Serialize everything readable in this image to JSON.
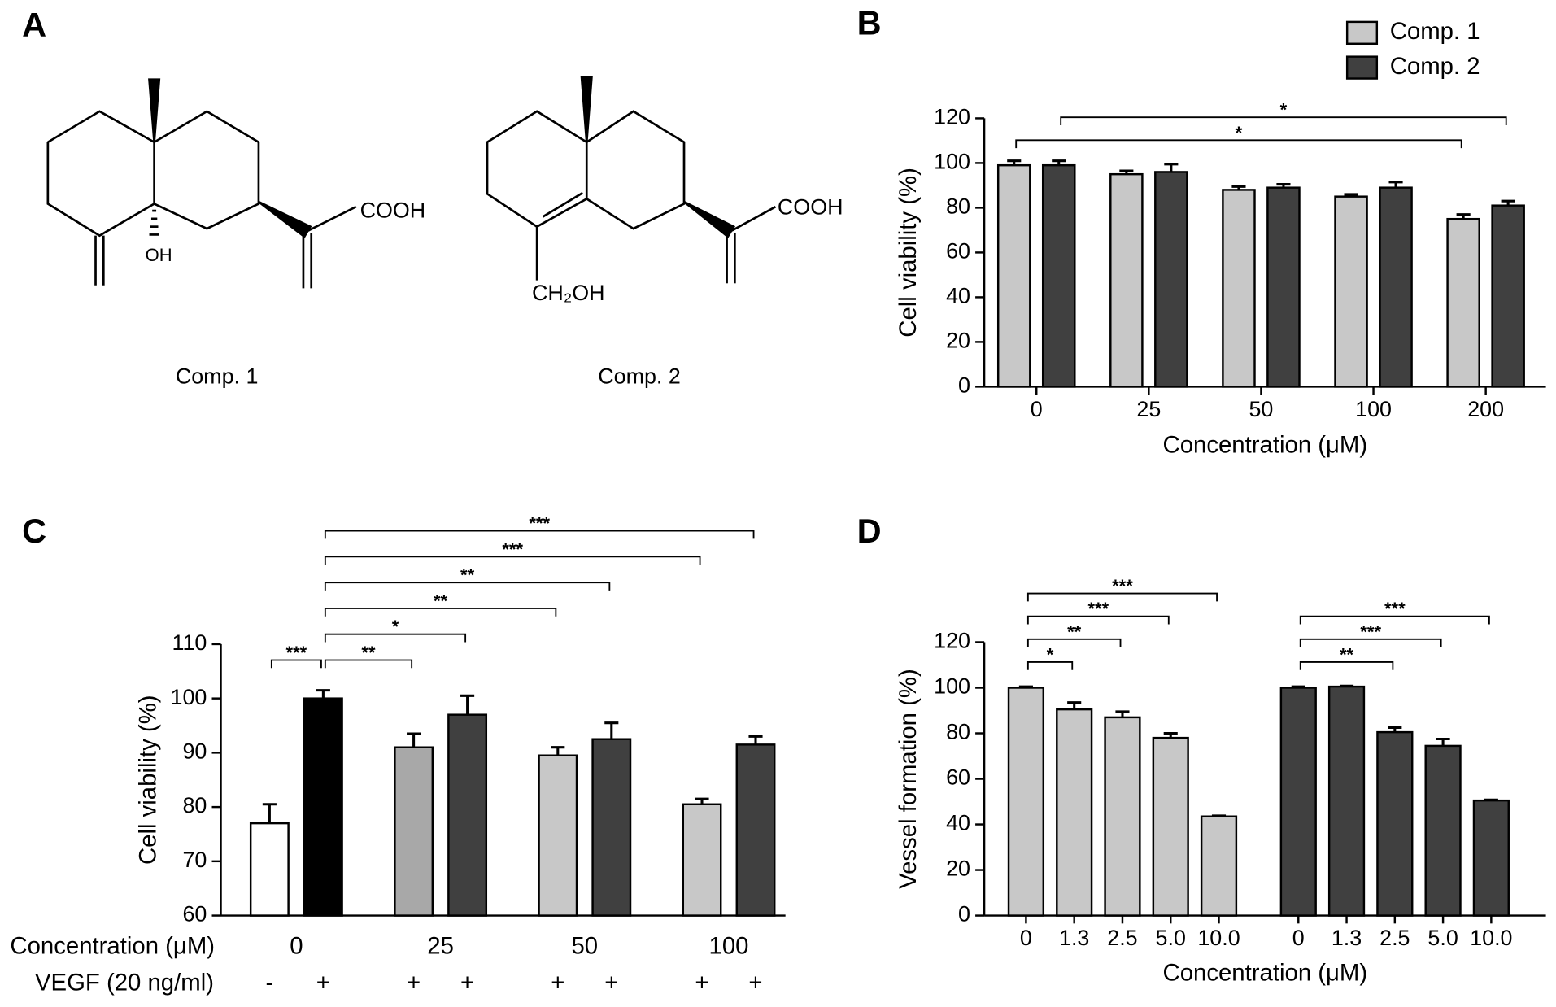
{
  "panel_a": {
    "panel": "A",
    "structures": [
      {
        "name": "Comp. 1",
        "labels": [
          "COOH",
          "OH"
        ]
      },
      {
        "name": "Comp. 2",
        "labels": [
          "COOH",
          "CH₂OH"
        ]
      }
    ]
  },
  "chart_data": [
    {
      "panel": "B",
      "type": "bar",
      "y_label": "Cell viability (%)",
      "x_label": "Concentration (μM)",
      "categories": [
        "0",
        "25",
        "50",
        "100",
        "200"
      ],
      "series": [
        {
          "name": "Comp. 1",
          "color": "#c8c8c8",
          "values": [
            99,
            95,
            88,
            85,
            75
          ],
          "errors": [
            2,
            1.5,
            1.5,
            1,
            2
          ]
        },
        {
          "name": "Comp. 2",
          "color": "#404040",
          "values": [
            99,
            96,
            89,
            89,
            81
          ],
          "errors": [
            2,
            3.5,
            1.5,
            2.5,
            2
          ]
        }
      ],
      "ylim": [
        0,
        120
      ],
      "yticks": [
        0,
        20,
        40,
        60,
        80,
        100,
        120
      ],
      "legend": "upper right",
      "annotations": [
        {
          "from": [
            0,
            0
          ],
          "to": [
            0,
            4
          ],
          "label": "*"
        },
        {
          "from": [
            1,
            0
          ],
          "to": [
            1,
            4
          ],
          "label": "*"
        }
      ]
    },
    {
      "panel": "C",
      "type": "bar",
      "y_label": "Cell viability (%)",
      "values": [
        77,
        100,
        91,
        97,
        89.5,
        92.5,
        80.5,
        91.5
      ],
      "errors": [
        3.5,
        1.5,
        2.5,
        3.5,
        1.5,
        3,
        1,
        1.5
      ],
      "colors": [
        "#ffffff",
        "#000000",
        "#a8a8a8",
        "#404040",
        "#c8c8c8",
        "#404040",
        "#c8c8c8",
        "#404040"
      ],
      "ylim": [
        60,
        110
      ],
      "yticks": [
        60,
        70,
        80,
        90,
        100,
        110
      ],
      "rows": [
        {
          "label": "Concentration (μM)",
          "categories": [
            "0",
            "25",
            "50",
            "100"
          ]
        },
        {
          "label": "VEGF (20 ng/ml)",
          "categories": [
            "-",
            "+",
            "+",
            "+",
            "+",
            "+",
            "+",
            "+"
          ]
        }
      ],
      "annotations": [
        {
          "from": 0,
          "to": 1,
          "label": "***"
        },
        {
          "from": 1,
          "to": 2,
          "label": "**"
        },
        {
          "from": 1,
          "to": 3,
          "label": "*"
        },
        {
          "from": 1,
          "to": 4,
          "label": "**"
        },
        {
          "from": 1,
          "to": 5,
          "label": "**"
        },
        {
          "from": 1,
          "to": 6,
          "label": "***"
        },
        {
          "from": 1,
          "to": 7,
          "label": "***"
        }
      ]
    },
    {
      "panel": "D",
      "type": "bar",
      "y_label": "Vessel formation (%)",
      "x_label": "Concentration (μM)",
      "series": [
        {
          "color": "#c8c8c8",
          "categories": [
            "0",
            "1.3",
            "2.5",
            "5.0",
            "10.0"
          ],
          "values": [
            100,
            90.5,
            87,
            78,
            43.5
          ],
          "errors": [
            0.5,
            3,
            2.5,
            2,
            0.3
          ]
        },
        {
          "color": "#404040",
          "categories": [
            "0",
            "1.3",
            "2.5",
            "5.0",
            "10.0"
          ],
          "values": [
            100,
            100.5,
            80.5,
            74.5,
            50.5
          ],
          "errors": [
            0.5,
            0.3,
            2,
            3,
            0.3
          ]
        }
      ],
      "ylim": [
        0,
        120
      ],
      "yticks": [
        0,
        20,
        40,
        60,
        80,
        100,
        120
      ],
      "annotations": [
        {
          "from": [
            0,
            0
          ],
          "to": [
            0,
            1
          ],
          "label": "*"
        },
        {
          "from": [
            0,
            0
          ],
          "to": [
            0,
            2
          ],
          "label": "**"
        },
        {
          "from": [
            0,
            0
          ],
          "to": [
            0,
            3
          ],
          "label": "***"
        },
        {
          "from": [
            0,
            0
          ],
          "to": [
            0,
            4
          ],
          "label": "***"
        },
        {
          "from": [
            1,
            0
          ],
          "to": [
            1,
            2
          ],
          "label": "**"
        },
        {
          "from": [
            1,
            0
          ],
          "to": [
            1,
            3
          ],
          "label": "***"
        },
        {
          "from": [
            1,
            0
          ],
          "to": [
            1,
            4
          ],
          "label": "***"
        }
      ]
    }
  ]
}
